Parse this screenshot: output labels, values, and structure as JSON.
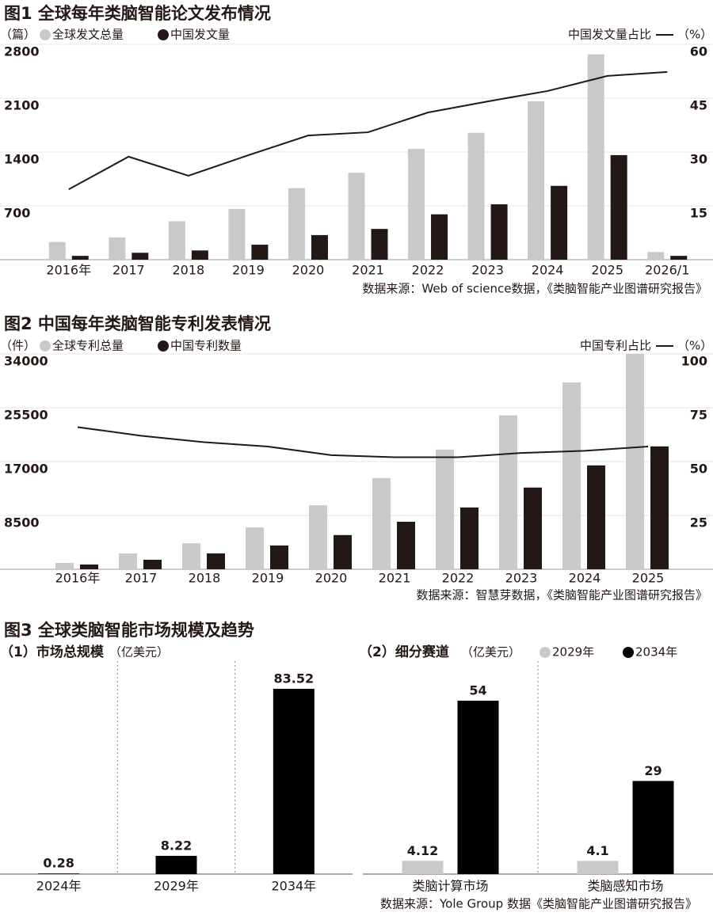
{
  "chart_data": [
    {
      "type": "bar",
      "title": "图1 全球每年类脑智能论文发布情况",
      "y_unit": "（篇）",
      "y2_unit": "（%）",
      "categories": [
        "2016年",
        "2017",
        "2018",
        "2019",
        "2020",
        "2021",
        "2022",
        "2023",
        "2024",
        "2025",
        "2026/1"
      ],
      "series": [
        {
          "name": "全球发文总量",
          "color": "#c9c9c9",
          "values": [
            230,
            290,
            500,
            660,
            930,
            1130,
            1440,
            1650,
            2060,
            2670,
            100
          ]
        },
        {
          "name": "中国发文量",
          "color": "#231815",
          "values": [
            50,
            90,
            120,
            195,
            320,
            400,
            590,
            720,
            960,
            1360,
            50
          ]
        },
        {
          "name": "中国发文量占比",
          "type": "line",
          "axis": "y2",
          "color": "#231815",
          "values": [
            19.6,
            28.7,
            23.4,
            29.1,
            34.6,
            35.5,
            41,
            44.1,
            47,
            51.2,
            52.3
          ]
        }
      ],
      "ylim": [
        0,
        2800
      ],
      "yticks": [
        700,
        1400,
        2100,
        2800
      ],
      "y2lim": [
        0,
        60
      ],
      "y2ticks": [
        15,
        30,
        45,
        60
      ],
      "grid": true,
      "source": "数据来源：Web of science数据，《类脑智能产业图谱研究报告》"
    },
    {
      "type": "bar",
      "title": "图2 中国每年类脑智能专利发表情况",
      "y_unit": "（件）",
      "y2_unit": "（%）",
      "categories": [
        "2016年",
        "2017",
        "2018",
        "2019",
        "2020",
        "2021",
        "2022",
        "2023",
        "2024",
        "2025"
      ],
      "series": [
        {
          "name": "全球专利总量",
          "color": "#c9c9c9",
          "values": [
            1000,
            2500,
            4100,
            6600,
            10100,
            14400,
            18900,
            24300,
            29500,
            34000
          ]
        },
        {
          "name": "中国专利数量",
          "color": "#231815",
          "values": [
            750,
            1500,
            2500,
            3750,
            5400,
            7500,
            9750,
            12900,
            16400,
            19400
          ]
        },
        {
          "name": "中国专利占比",
          "type": "line",
          "axis": "y2",
          "color": "#231815",
          "values": [
            66,
            62,
            59,
            57,
            53,
            52,
            52,
            54,
            55,
            57
          ]
        }
      ],
      "ylim": [
        0,
        34000
      ],
      "yticks": [
        8500,
        17000,
        25500,
        34000
      ],
      "y2lim": [
        0,
        100
      ],
      "y2ticks": [
        25,
        50,
        75,
        100
      ],
      "grid": true,
      "source": "数据来源：智慧芽数据，《类脑智能产业图谱研究报告》"
    },
    {
      "type": "bar",
      "title": "图3 全球类脑智能市场规模及趋势",
      "subtitle": "（1）市场总规模",
      "y_unit": "（亿美元）",
      "categories": [
        "2024年",
        "2029年",
        "2034年"
      ],
      "values": [
        0.28,
        8.22,
        83.52
      ],
      "color": "#000000"
    },
    {
      "type": "bar",
      "subtitle": "（2）细分赛道",
      "y_unit": "（亿美元）",
      "categories": [
        "类脑计算市场",
        "类脑感知市场"
      ],
      "series": [
        {
          "name": "2029年",
          "color": "#c9c9c9",
          "values": [
            4.12,
            4.1
          ]
        },
        {
          "name": "2034年",
          "color": "#000000",
          "values": [
            54,
            29
          ]
        }
      ],
      "source": "数据来源：Yole Group 数据《类脑智能产业图谱研究报告》"
    }
  ]
}
